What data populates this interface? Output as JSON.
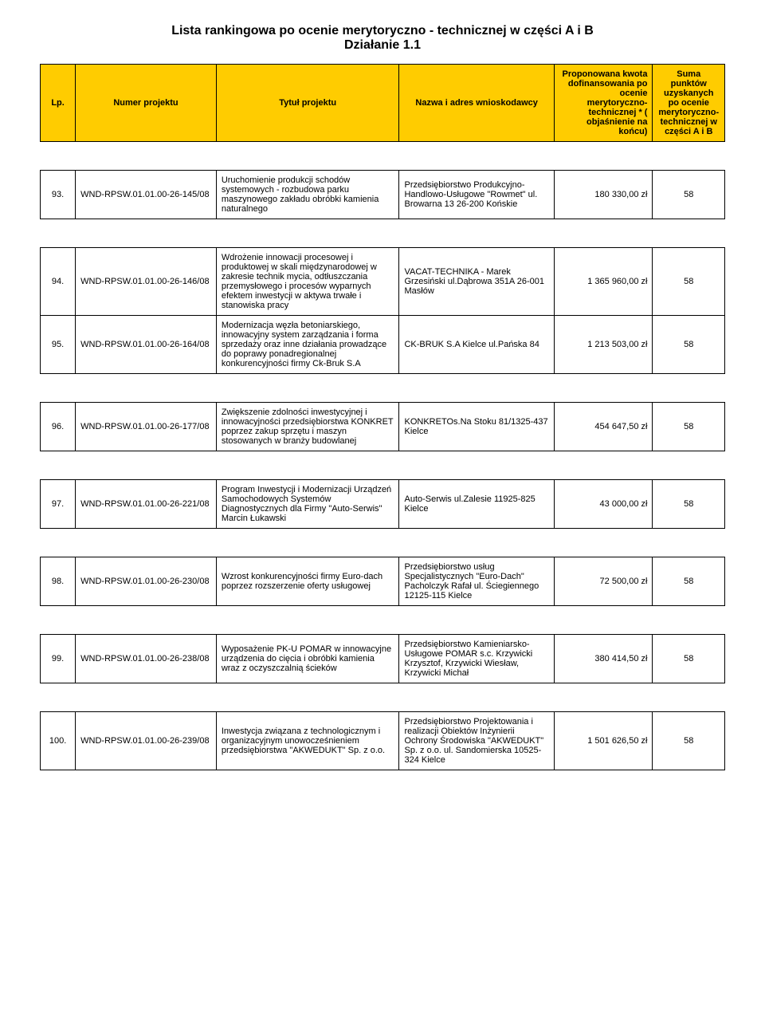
{
  "title1": "Lista rankingowa po ocenie merytoryczno - technicznej w części A i B",
  "title2": "Działanie 1.1",
  "headers": {
    "lp": "Lp.",
    "num": "Numer projektu",
    "title": "Tytuł projektu",
    "name": "Nazwa i adres wnioskodawcy",
    "amount": "Proponowana kwota dofinansowania po ocenie merytoryczno-technicznej * ( objaśnienie na końcu)",
    "points": "Suma punktów uzyskanych po ocenie merytoryczno-technicznej w części A i B"
  },
  "rows": [
    {
      "lp": "93.",
      "num": "WND-RPSW.01.01.00-26-145/08",
      "desc": "Uruchomienie produkcji schodów systemowych - rozbudowa parku maszynowego zakładu obróbki kamienia naturalnego",
      "name": "Przedsiębiorstwo Produkcyjno-Handlowo-Usługowe \"Rowmet\" ul. Browarna 13 26-200 Końskie",
      "amount": "180 330,00 zł",
      "points": "58",
      "spacer": true
    },
    {
      "lp": "94.",
      "num": "WND-RPSW.01.01.00-26-146/08",
      "desc": "Wdrożenie innowacji procesowej i produktowej w skali międzynarodowej w zakresie technik mycia, odtłuszczania przemysłowego i procesów wyparnych efektem inwestycji w aktywa trwałe i stanowiska pracy",
      "name": "VACAT-TECHNIKA - Marek Grzesiński ul.Dąbrowa 351A 26-001 Masłów",
      "amount": "1 365 960,00 zł",
      "points": "58",
      "spacer": false
    },
    {
      "lp": "95.",
      "num": "WND-RPSW.01.01.00-26-164/08",
      "desc": "Modernizacja węzła betoniarskiego, innowacyjny system zarządzania i forma sprzedaży oraz inne działania prowadzące do poprawy ponadregionalnej konkurencyjności firmy Ck-Bruk S.A",
      "name": "CK-BRUK S.A Kielce ul.Pańska 84",
      "amount": "1 213 503,00 zł",
      "points": "58",
      "spacer": true
    },
    {
      "lp": "96.",
      "num": "WND-RPSW.01.01.00-26-177/08",
      "desc": "Zwiększenie zdolności inwestycyjnej i innowacyjności przedsiębiorstwa KONKRET poprzez zakup sprzętu i maszyn stosowanych w branży budowlanej",
      "name": "KONKRETOs.Na Stoku 81/1325-437 Kielce",
      "amount": "454 647,50 zł",
      "points": "58",
      "spacer": true
    },
    {
      "lp": "97.",
      "num": "WND-RPSW.01.01.00-26-221/08",
      "desc": "Program Inwestycji i Modernizacji Urządzeń Samochodowych Systemów Diagnostycznych dla Firmy \"Auto-Serwis\" Marcin Łukawski",
      "name": "Auto-Serwis ul.Zalesie 11925-825 Kielce",
      "amount": "43 000,00 zł",
      "points": "58",
      "spacer": true
    },
    {
      "lp": "98.",
      "num": "WND-RPSW.01.01.00-26-230/08",
      "desc": "Wzrost konkurencyjności firmy Euro-dach poprzez rozszerzenie oferty usługowej",
      "name": "Przedsiębiorstwo usług Specjalistycznych \"Euro-Dach\" Pacholczyk Rafał ul. Ściegiennego 12125-115 Kielce",
      "amount": "72 500,00 zł",
      "points": "58",
      "spacer": true
    },
    {
      "lp": "99.",
      "num": "WND-RPSW.01.01.00-26-238/08",
      "desc": "Wyposażenie PK-U POMAR w innowacyjne urządzenia do cięcia i obróbki kamienia wraz z oczyszczalnią ścieków",
      "name": "Przedsiębiorstwo Kamieniarsko-Usługowe POMAR s.c. Krzywicki Krzysztof, Krzywicki Wiesław, Krzywicki Michał",
      "amount": "380 414,50 zł",
      "points": "58",
      "spacer": true
    },
    {
      "lp": "100.",
      "num": "WND-RPSW.01.01.00-26-239/08",
      "desc": "Inwestycja związana z technologicznym i organizacyjnym unowocześnieniem przedsiębiorstwa \"AKWEDUKT\" Sp. z o.o.",
      "name": "Przedsiębiorstwo Projektowania i realizacji Obiektów Inżynierii Ochrony Środowiska \"AKWEDUKT\" Sp. z o.o. ul. Sandomierska 10525-324 Kielce",
      "amount": "1 501 626,50 zł",
      "points": "58",
      "spacer": false
    }
  ]
}
